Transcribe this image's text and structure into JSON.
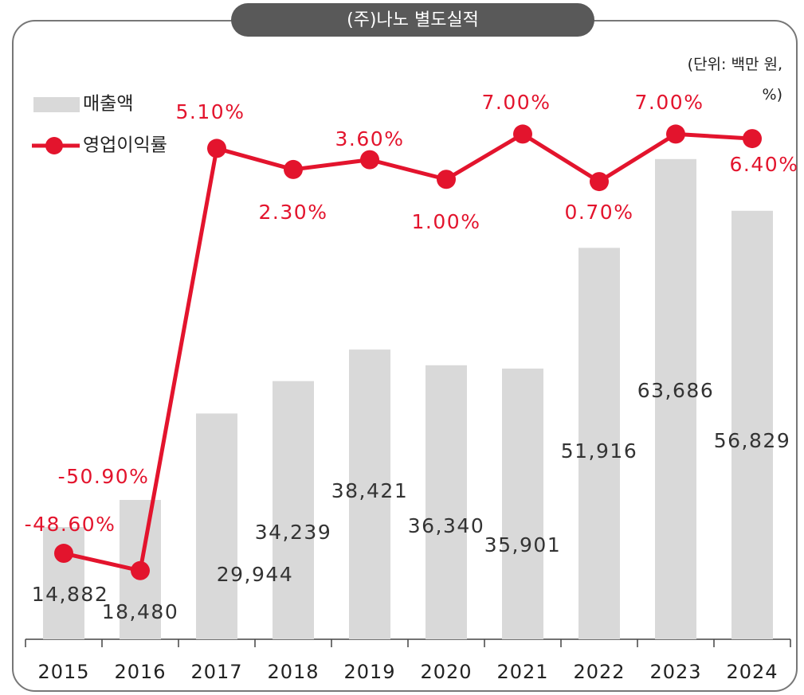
{
  "chart_data": {
    "type": "bar_line",
    "title": "(주)나노 별도실적",
    "unit": "(단위: 백만 원, %)",
    "categories": [
      "2015",
      "2016",
      "2017",
      "2018",
      "2019",
      "2020",
      "2021",
      "2022",
      "2023",
      "2024"
    ],
    "series": [
      {
        "name": "매출액",
        "type": "bar",
        "color": "#d9d9d9",
        "values": [
          14882,
          18480,
          29944,
          34239,
          38421,
          36340,
          35901,
          51916,
          63686,
          56829
        ],
        "value_labels": [
          "14,882",
          "18,480",
          "29,944",
          "34,239",
          "38,421",
          "36,340",
          "35,901",
          "51,916",
          "63,686",
          "56,829"
        ]
      },
      {
        "name": "영업이익률",
        "type": "line",
        "axis": "y2",
        "color": "#e3142d",
        "values": [
          -48.6,
          -50.9,
          5.1,
          2.3,
          3.6,
          1.0,
          7.0,
          0.7,
          7.0,
          6.4
        ],
        "value_labels": [
          "-48.60%",
          "-50.90%",
          "5.10%",
          "2.30%",
          "3.60%",
          "1.00%",
          "7.00%",
          "0.70%",
          "7.00%",
          "6.40%"
        ]
      }
    ],
    "ylim": [
      0,
      70000
    ],
    "y2lim": [
      -60,
      10
    ],
    "legend": "top-left"
  }
}
